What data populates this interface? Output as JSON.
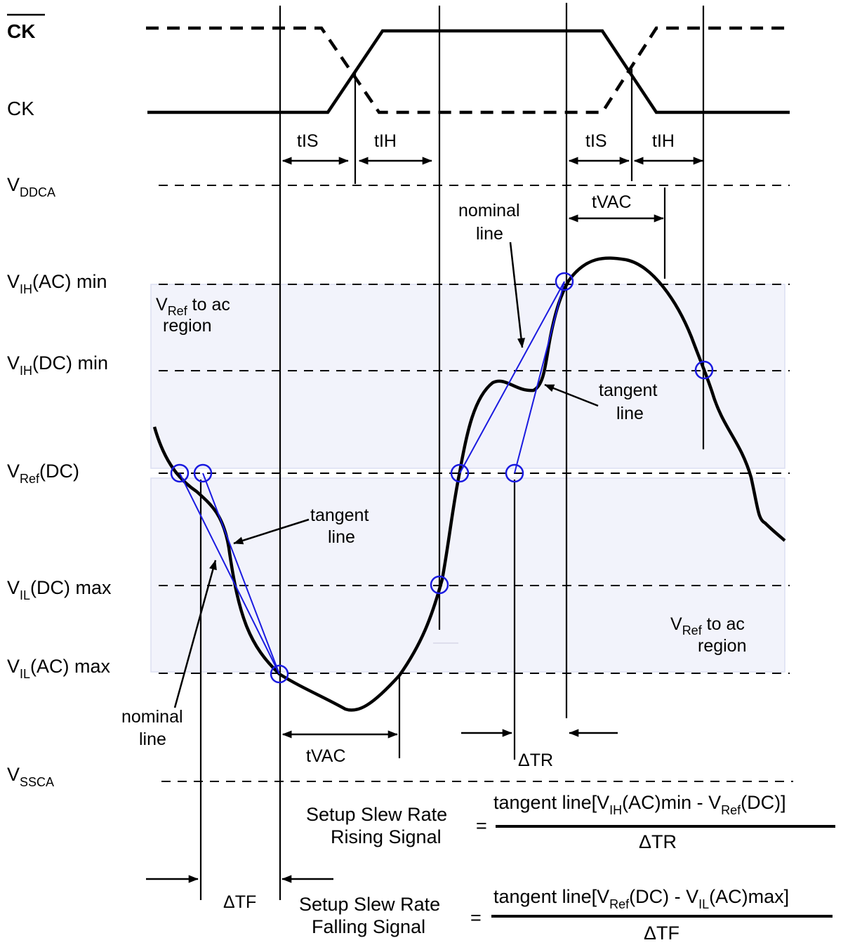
{
  "signals": {
    "ck_bar": "CK",
    "ck": "CK"
  },
  "levels": {
    "vddca": {
      "main": "V",
      "sub": "DDCA",
      "rest": ""
    },
    "vih_ac": {
      "main": "V",
      "sub": "IH",
      "rest": "(AC) min"
    },
    "vih_dc": {
      "main": "V",
      "sub": "IH",
      "rest": "(DC) min"
    },
    "vref_dc": {
      "main": "V",
      "sub": "Ref",
      "rest": "(DC)"
    },
    "vil_dc": {
      "main": "V",
      "sub": "IL",
      "rest": "(DC) max"
    },
    "vil_ac": {
      "main": "V",
      "sub": "IL",
      "rest": "(AC) max"
    },
    "vssca": {
      "main": "V",
      "sub": "SSCA",
      "rest": ""
    }
  },
  "timing_labels": {
    "tis_1": "tIS",
    "tih_1": "tIH",
    "tis_2": "tIS",
    "tih_2": "tIH",
    "tvac_top": "tVAC",
    "tvac_bottom": "tVAC",
    "delta_tr": "ΔTR",
    "delta_tf": "ΔTF"
  },
  "annotations": {
    "nominal_top": [
      "nominal",
      "line"
    ],
    "nominal_bottom": [
      "nominal",
      "line"
    ],
    "tangent_right": [
      "tangent",
      "line"
    ],
    "tangent_left": [
      "tangent",
      "line"
    ]
  },
  "regions": {
    "upper": {
      "main": "V",
      "sub": "Ref",
      "rest": " to ac",
      "line2": "region"
    },
    "lower": {
      "main": "V",
      "sub": "Ref",
      "rest": " to ac",
      "line2": "region"
    }
  },
  "formulas": {
    "rising": {
      "name_line1": "Setup Slew Rate",
      "name_line2": "Rising Signal",
      "equals": "=",
      "num_a": "tangent line[V",
      "num_sub1": "IH",
      "num_b": "(AC)min - V",
      "num_sub2": "Ref",
      "num_c": "(DC)]",
      "denominator": "ΔTR"
    },
    "falling": {
      "name_line1": "Setup Slew Rate",
      "name_line2": "Falling Signal",
      "equals": "=",
      "num_a": "tangent line[V",
      "num_sub1": "Ref",
      "num_b": "(DC) - V",
      "num_sub2": "IL",
      "num_c": "(AC)max]",
      "denominator": "ΔTF"
    }
  },
  "colors": {
    "ink": "#000000",
    "tangent": "#1a1ae0",
    "region_fill": "#f2f3fb",
    "region_stroke": "#dcdff2"
  }
}
